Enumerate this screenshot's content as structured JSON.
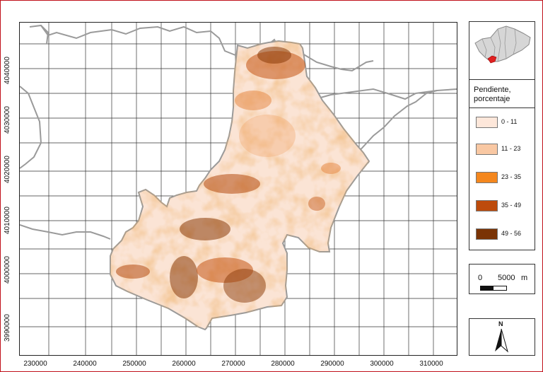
{
  "map": {
    "x_ticks": [
      "230000",
      "240000",
      "250000",
      "260000",
      "270000",
      "280000",
      "290000",
      "300000",
      "310000"
    ],
    "y_ticks": [
      "4040000",
      "4030000",
      "4020000",
      "4010000",
      "4000000",
      "3990000"
    ]
  },
  "locator": {
    "icon": "andalusia-locator-map",
    "highlight_color": "#e02020"
  },
  "legend": {
    "title": "Pendiente, porcentaje",
    "classes": [
      {
        "label": "0 - 11",
        "color": "#fde7da"
      },
      {
        "label": "11 - 23",
        "color": "#f9c8a3"
      },
      {
        "label": "23 - 35",
        "color": "#f4871e"
      },
      {
        "label": "35 - 49",
        "color": "#bd4b0c"
      },
      {
        "label": "49 - 56",
        "color": "#7a3305"
      }
    ]
  },
  "scale": {
    "zero": "0",
    "distance": "5000",
    "unit": "m"
  },
  "north": {
    "label": "N",
    "icon": "north-arrow-icon"
  }
}
